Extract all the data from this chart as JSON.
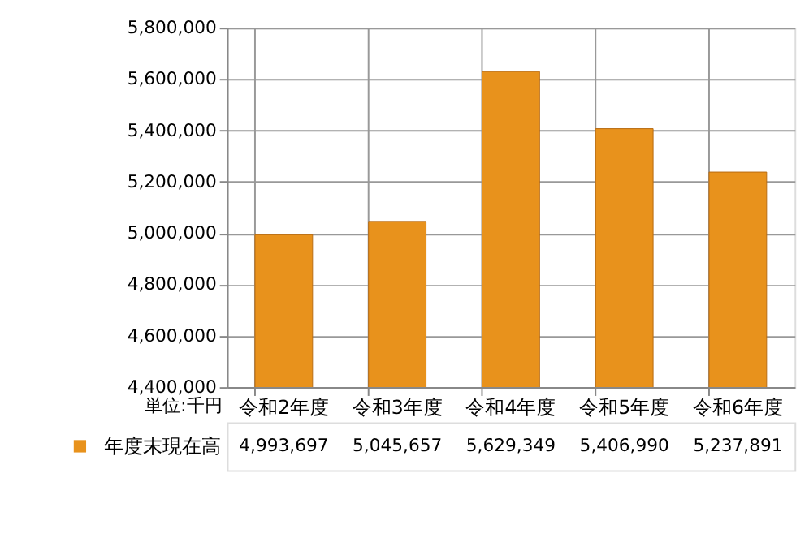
{
  "chart_data": {
    "type": "bar",
    "categories": [
      "令和2年度",
      "令和3年度",
      "令和4年度",
      "令和5年度",
      "令和6年度"
    ],
    "series": [
      {
        "name": "年度末現在高",
        "color": "#e8921c",
        "values": [
          4993697,
          5045657,
          5629349,
          5406990,
          5237891
        ],
        "value_labels": [
          "4,993,697",
          "5,045,657",
          "5,629,349",
          "5,406,990",
          "5,237,891"
        ]
      }
    ],
    "ylim": [
      4400000,
      5800000
    ],
    "yticks": [
      {
        "value": 4400000,
        "label": "4,400,000"
      },
      {
        "value": 4600000,
        "label": "4,600,000"
      },
      {
        "value": 4800000,
        "label": "4,800,000"
      },
      {
        "value": 5000000,
        "label": "5,000,000"
      },
      {
        "value": 5200000,
        "label": "5,200,000"
      },
      {
        "value": 5400000,
        "label": "5,400,000"
      },
      {
        "value": 5600000,
        "label": "5,600,000"
      },
      {
        "value": 5800000,
        "label": "5,800,000"
      }
    ],
    "grid": true,
    "legend": "bottom",
    "annotations": [
      "単位:千円"
    ]
  }
}
